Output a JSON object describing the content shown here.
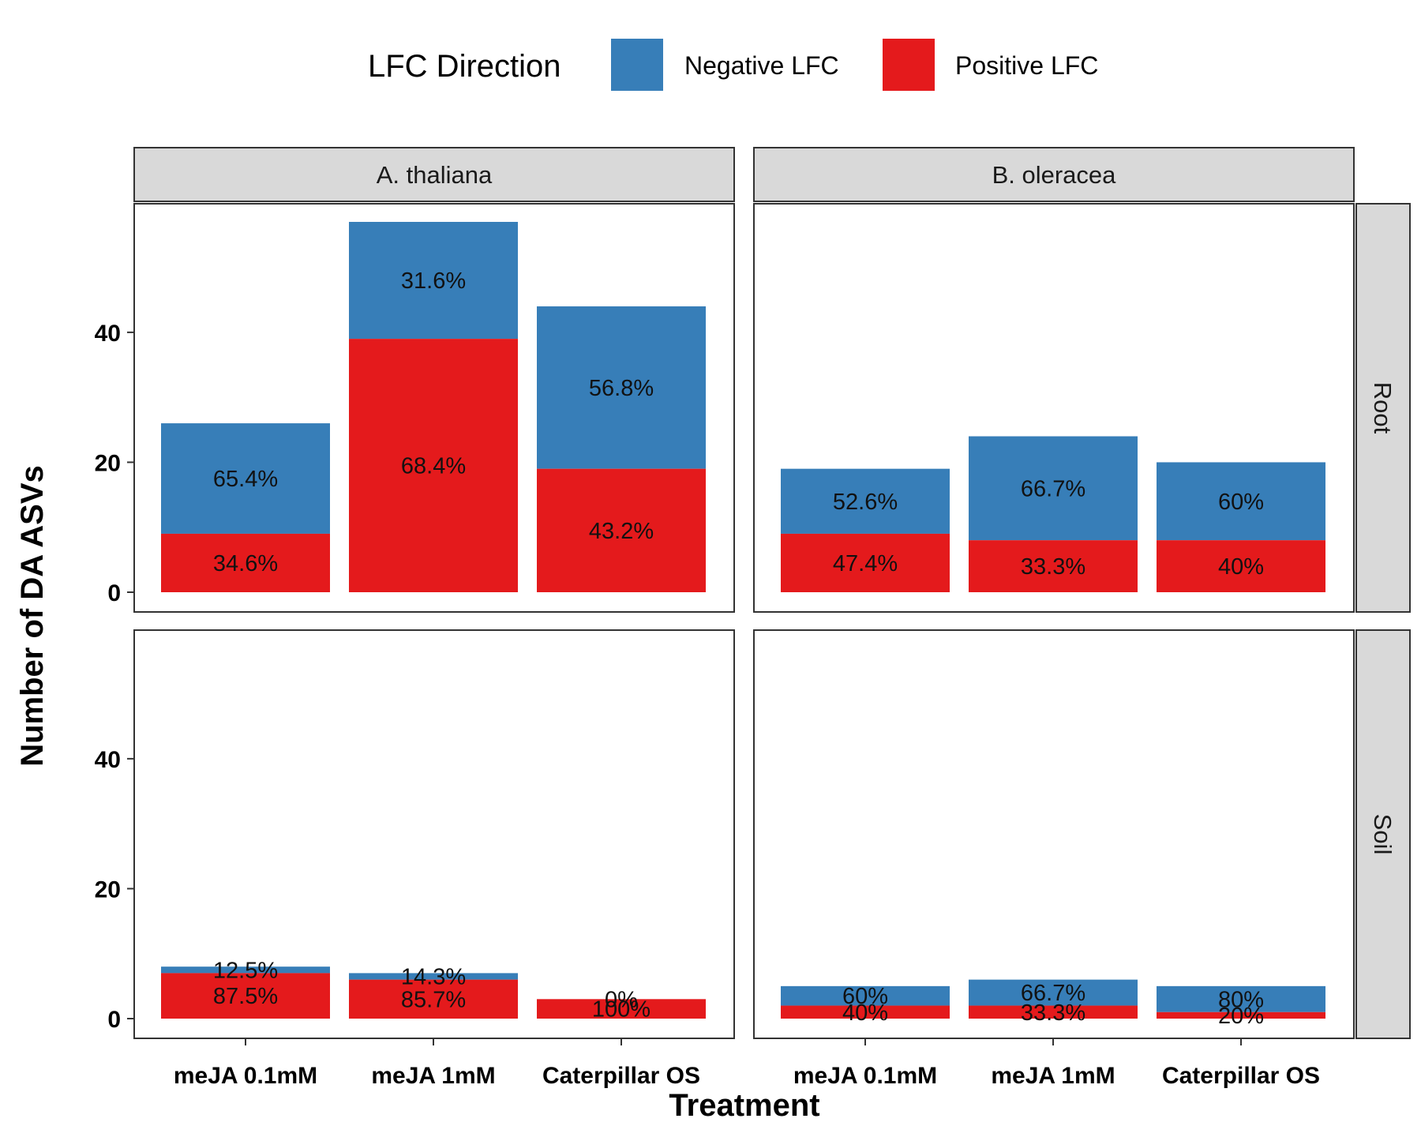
{
  "chart_data": {
    "type": "bar",
    "stacked": true,
    "xlabel": "Treatment",
    "ylabel": "Number of DA ASVs",
    "ylim": [
      0,
      60
    ],
    "yticks": [
      0,
      20,
      40
    ],
    "categories": [
      "meJA 0.1mM",
      "meJA 1mM",
      "Caterpillar OS"
    ],
    "legend": {
      "title": "LFC Direction",
      "position": "top",
      "entries": [
        {
          "name": "Negative LFC",
          "color": "#377EB8"
        },
        {
          "name": "Positive LFC",
          "color": "#E41A1C"
        }
      ]
    },
    "facet_columns": [
      "A. thaliana",
      "B. oleracea"
    ],
    "facet_rows": [
      "Root",
      "Soil"
    ],
    "panels": [
      {
        "column": "A. thaliana",
        "row": "Root",
        "positive": [
          9,
          39,
          19
        ],
        "negative": [
          17,
          18,
          25
        ],
        "positive_labels": [
          "34.6%",
          "68.4%",
          "43.2%"
        ],
        "negative_labels": [
          "65.4%",
          "31.6%",
          "56.8%"
        ]
      },
      {
        "column": "B. oleracea",
        "row": "Root",
        "positive": [
          9,
          8,
          8
        ],
        "negative": [
          10,
          16,
          12
        ],
        "positive_labels": [
          "47.4%",
          "33.3%",
          "40%"
        ],
        "negative_labels": [
          "52.6%",
          "66.7%",
          "60%"
        ]
      },
      {
        "column": "A. thaliana",
        "row": "Soil",
        "positive": [
          7,
          6,
          3
        ],
        "negative": [
          1,
          1,
          0
        ],
        "positive_labels": [
          "87.5%",
          "85.7%",
          "100%"
        ],
        "negative_labels": [
          "12.5%",
          "14.3%",
          "0%"
        ]
      },
      {
        "column": "B. oleracea",
        "row": "Soil",
        "positive": [
          2,
          2,
          1
        ],
        "negative": [
          3,
          4,
          4
        ],
        "positive_labels": [
          "40%",
          "33.3%",
          "20%"
        ],
        "negative_labels": [
          "60%",
          "66.7%",
          "80%"
        ]
      }
    ]
  }
}
